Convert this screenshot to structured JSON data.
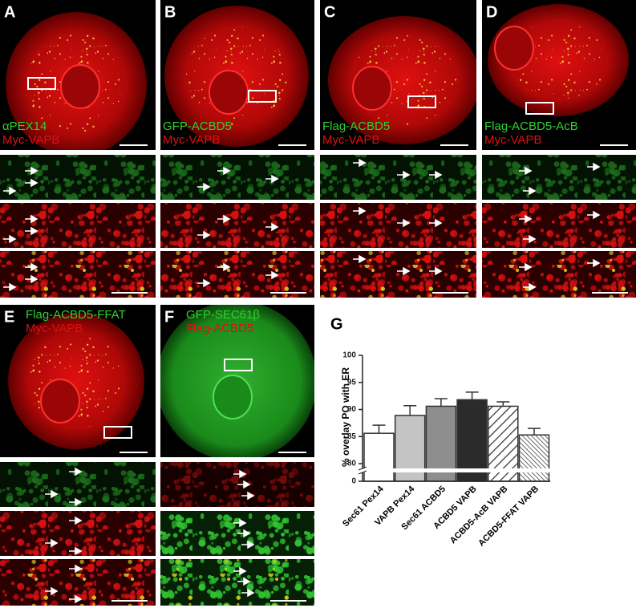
{
  "panels": [
    {
      "letter": "A",
      "labels": [
        "αPEX14",
        "Myc-VAPB"
      ]
    },
    {
      "letter": "B",
      "labels": [
        "GFP-ACBD5",
        "Myc-VAPB"
      ]
    },
    {
      "letter": "C",
      "labels": [
        "Flag-ACBD5",
        "Myc-VAPB"
      ]
    },
    {
      "letter": "D",
      "labels": [
        "Flag-ACBD5-AcB",
        "Myc-VAPB"
      ]
    },
    {
      "letter": "E",
      "labels": [
        "Flag-ACBD5-FFAT",
        "Myc-VAPB"
      ]
    },
    {
      "letter": "F",
      "labels": [
        "GFP-SEC61β",
        "Flag-ACBD5"
      ]
    }
  ],
  "chart_data": {
    "type": "bar",
    "letter": "G",
    "ylabel": "% overlay PO with ER",
    "categories": [
      "Sec61 Pex14",
      "VAPB Pex14",
      "Sec61 ACBD5",
      "ACBD5 VAPB",
      "ACBD5-AcB VAPB",
      "ACBD5-FFAT VAPB"
    ],
    "values": [
      85.6,
      88.9,
      90.6,
      91.8,
      90.6,
      85.3
    ],
    "errors": [
      1.5,
      1.8,
      1.4,
      1.4,
      0.8,
      1.2
    ],
    "colors": [
      "#ffffff",
      "#c4c4c4",
      "#8e8e8e",
      "#2b2b2b",
      "#ffffff",
      "#ffffff"
    ],
    "hatch": [
      "none",
      "none",
      "none",
      "none",
      "wide",
      "dense"
    ],
    "ylim": [
      80,
      100
    ],
    "yticks": [
      80,
      85,
      90,
      95,
      100
    ],
    "broken_axis_ticks": [
      0
    ]
  }
}
